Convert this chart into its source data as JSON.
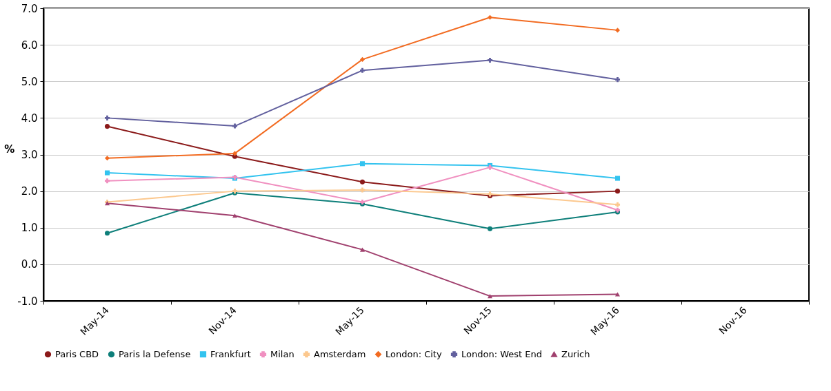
{
  "chart_data": {
    "type": "line",
    "ylabel": "%",
    "categories": [
      "May-14",
      "Nov-14",
      "May-15",
      "Nov-15",
      "May-16",
      "Nov-16"
    ],
    "series": [
      {
        "name": "Paris CBD",
        "color": "#8b1a1a",
        "marker": "circle",
        "values": [
          3.77,
          2.95,
          2.25,
          1.87,
          2.0,
          null
        ]
      },
      {
        "name": "Paris la Defense",
        "color": "#0e7f7a",
        "marker": "circle",
        "values": [
          0.85,
          1.95,
          1.65,
          0.97,
          1.43,
          null
        ]
      },
      {
        "name": "Frankfurt",
        "color": "#33c3ef",
        "marker": "square",
        "values": [
          2.5,
          2.35,
          2.75,
          2.7,
          2.35,
          null
        ]
      },
      {
        "name": "Milan",
        "color": "#f090c0",
        "marker": "cross",
        "values": [
          2.28,
          2.38,
          1.7,
          2.65,
          1.48,
          null
        ]
      },
      {
        "name": "Amsterdam",
        "color": "#fcc88e",
        "marker": "cross",
        "values": [
          1.7,
          2.0,
          2.03,
          1.92,
          1.63,
          null
        ]
      },
      {
        "name": "London: City",
        "color": "#f26b21",
        "marker": "diamond",
        "values": [
          2.9,
          3.03,
          5.6,
          6.75,
          6.4,
          null
        ]
      },
      {
        "name": "London: West End",
        "color": "#62609e",
        "marker": "cross",
        "values": [
          4.0,
          3.78,
          5.3,
          5.58,
          5.05,
          null
        ]
      },
      {
        "name": "Zurich",
        "color": "#a0406e",
        "marker": "triangle",
        "values": [
          1.67,
          1.33,
          0.4,
          -0.87,
          -0.82,
          null
        ]
      }
    ],
    "ylim": [
      -1.0,
      7.0
    ],
    "yticks": [
      {
        "value": -1,
        "label": "-1.0"
      },
      {
        "value": 0,
        "label": "0.0"
      },
      {
        "value": 1,
        "label": "1.0"
      },
      {
        "value": 2,
        "label": "2.0"
      },
      {
        "value": 3,
        "label": "3.0"
      },
      {
        "value": 4,
        "label": "4.0"
      },
      {
        "value": 5,
        "label": "5.0"
      },
      {
        "value": 6,
        "label": "6.0"
      },
      {
        "value": 7,
        "label": "7.0"
      }
    ],
    "grid": "y",
    "legend": "bottom",
    "line_style": "solid"
  }
}
